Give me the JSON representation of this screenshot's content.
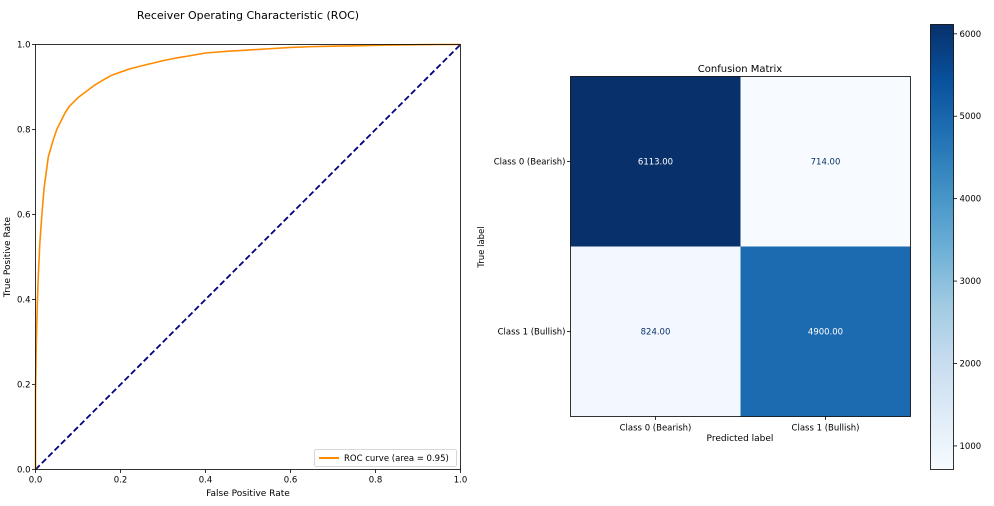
{
  "chart_data": [
    {
      "type": "line",
      "title": "Receiver Operating Characteristic (ROC)",
      "xlabel": "False Positive Rate",
      "ylabel": "True Positive Rate",
      "xlim": [
        0.0,
        1.0
      ],
      "ylim": [
        0.0,
        1.0
      ],
      "x_ticks": [
        0.0,
        0.2,
        0.4,
        0.6,
        0.8,
        1.0
      ],
      "y_ticks": [
        0.0,
        0.2,
        0.4,
        0.6,
        0.8,
        1.0
      ],
      "tick_labels": [
        "0.0",
        "0.2",
        "0.4",
        "0.6",
        "0.8",
        "1.0"
      ],
      "grid": false,
      "legend_position": "bottom-right",
      "series": [
        {
          "name": "ROC curve (area = 0.95)",
          "color": "#ff8c00",
          "style": "solid",
          "x": [
            0.0,
            0.0,
            0.002,
            0.004,
            0.006,
            0.01,
            0.015,
            0.02,
            0.03,
            0.04,
            0.05,
            0.06,
            0.07,
            0.08,
            0.09,
            0.1,
            0.12,
            0.14,
            0.16,
            0.18,
            0.2,
            0.22,
            0.25,
            0.28,
            0.3,
            0.33,
            0.36,
            0.4,
            0.45,
            0.5,
            0.55,
            0.6,
            0.65,
            0.7,
            0.75,
            0.8,
            0.85,
            0.9,
            0.95,
            1.0
          ],
          "y": [
            0.0,
            0.18,
            0.3,
            0.38,
            0.44,
            0.53,
            0.6,
            0.66,
            0.735,
            0.77,
            0.8,
            0.82,
            0.84,
            0.855,
            0.865,
            0.875,
            0.89,
            0.905,
            0.917,
            0.928,
            0.935,
            0.942,
            0.95,
            0.957,
            0.962,
            0.968,
            0.973,
            0.98,
            0.984,
            0.987,
            0.99,
            0.993,
            0.995,
            0.996,
            0.997,
            0.998,
            0.999,
            0.9995,
            1.0,
            1.0
          ]
        },
        {
          "name": "",
          "color": "#000080",
          "style": "dashed",
          "x": [
            0.0,
            1.0
          ],
          "y": [
            0.0,
            1.0
          ]
        }
      ]
    },
    {
      "type": "heatmap",
      "title": "Confusion Matrix",
      "xlabel": "Predicted label",
      "ylabel": "True label",
      "row_labels": [
        "Class 0 (Bearish)",
        "Class 1 (Bullish)"
      ],
      "col_labels": [
        "Class 0 (Bearish)",
        "Class 1 (Bullish)"
      ],
      "values": [
        [
          6113,
          714
        ],
        [
          824,
          4900
        ]
      ],
      "cell_labels": [
        [
          "6113.00",
          "714.00"
        ],
        [
          "824.00",
          "4900.00"
        ]
      ],
      "colormap": "Blues",
      "colorbar": {
        "min": 714,
        "max": 6113,
        "ticks": [
          1000,
          2000,
          3000,
          4000,
          5000,
          6000
        ],
        "tick_labels": [
          "1000",
          "2000",
          "3000",
          "4000",
          "5000",
          "6000"
        ]
      }
    }
  ]
}
